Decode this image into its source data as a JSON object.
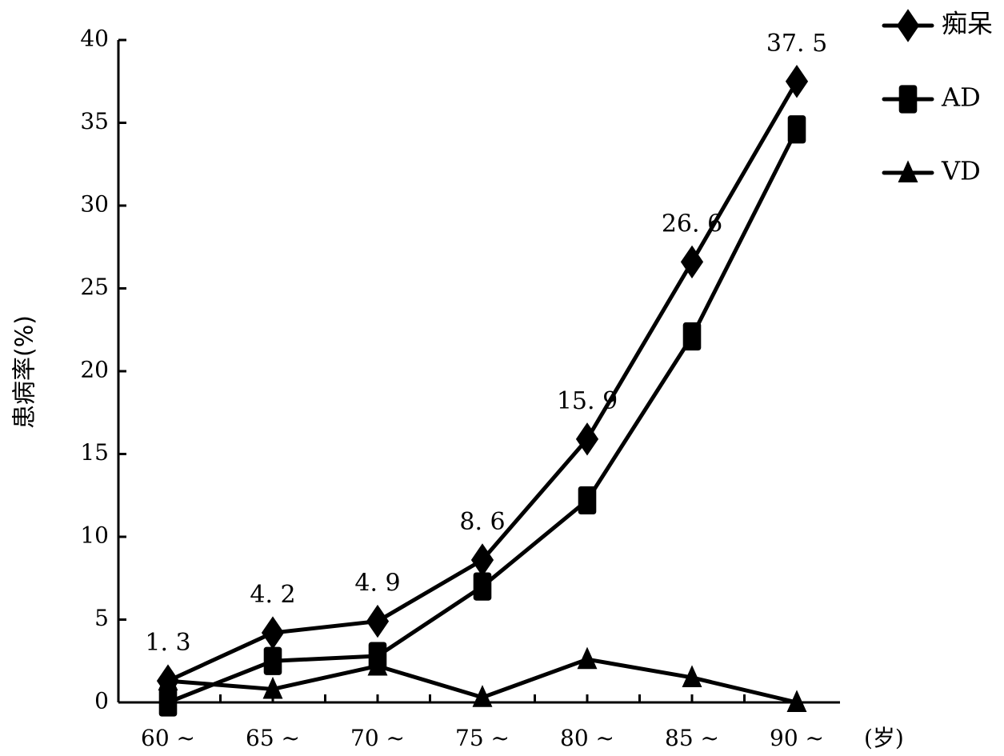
{
  "chart_data": {
    "type": "line",
    "categories": [
      "60 ~",
      "65 ~",
      "70 ~",
      "75 ~",
      "80 ~",
      "85 ~",
      "90 ~"
    ],
    "ylabel": "患病率(%)",
    "xunit": "(岁)",
    "ylim": [
      0,
      40
    ],
    "yticks": [
      "0",
      "5",
      "10",
      "15",
      "20",
      "25",
      "30",
      "35",
      "40"
    ],
    "legend_position": "top-right",
    "grid": false,
    "series": [
      {
        "name": "痴呆",
        "marker": "diamond",
        "values": [
          1.3,
          4.2,
          4.9,
          8.6,
          15.9,
          26.6,
          37.5
        ],
        "labels": [
          "1. 3",
          "4. 2",
          "4. 9",
          "8. 6",
          "15. 9",
          "26. 6",
          "37. 5"
        ]
      },
      {
        "name": "AD",
        "marker": "square",
        "values": [
          0,
          2.5,
          2.8,
          7.0,
          12.2,
          22.1,
          34.6
        ]
      },
      {
        "name": "VD",
        "marker": "triangle",
        "values": [
          1.3,
          0.8,
          2.2,
          0.3,
          2.6,
          1.5,
          0
        ]
      }
    ],
    "colors": {
      "line": "#000000",
      "background": "#ffffff"
    }
  }
}
